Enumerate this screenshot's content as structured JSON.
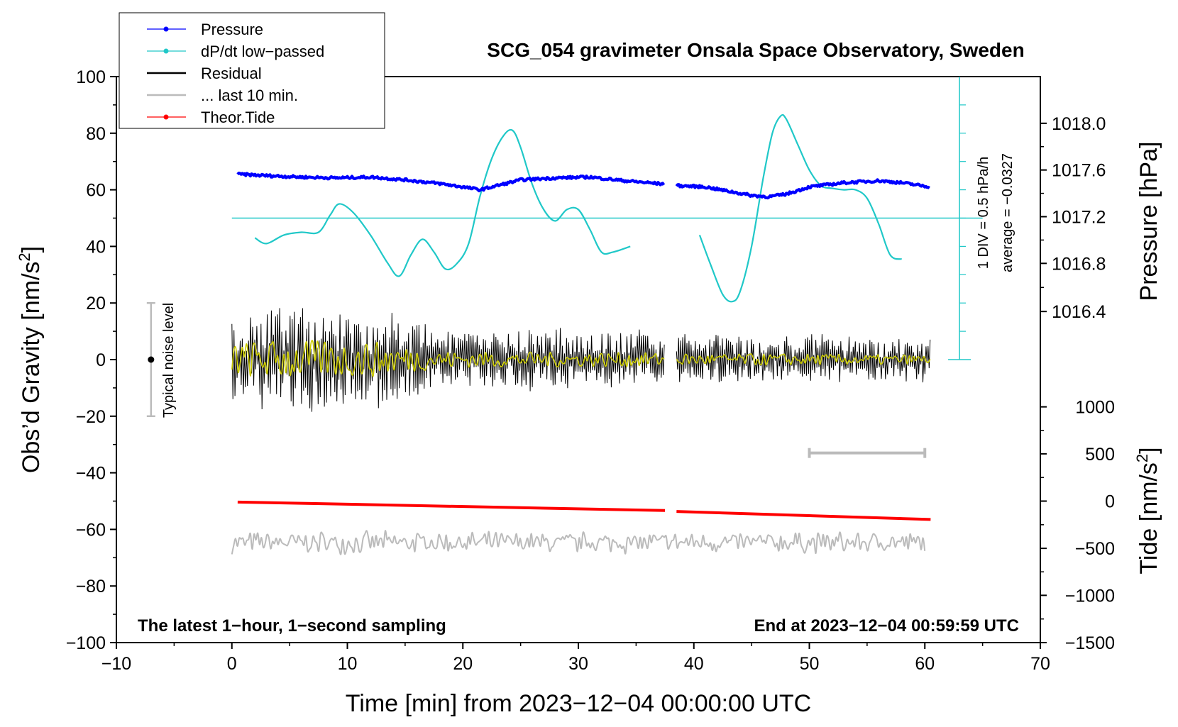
{
  "chart_data": {
    "type": "line",
    "title": "SCG_054 gravimeter Onsala Space Observatory, Sweden",
    "xlabel": "Time [min] from 2023−12−04 00:00:00 UTC",
    "ylabel_left": "Obs’d Gravity [nm/s²]",
    "ylabel_left_parts": {
      "base": "Obs’d Gravity [nm/s",
      "sup": "2",
      "end": "]"
    },
    "ylabel_pressure": "Pressure [hPa]",
    "ylabel_tide": "Tide [nm/s²]",
    "ylabel_tide_parts": {
      "base": "Tide [nm/s",
      "sup": "2",
      "end": "]"
    },
    "xlim": [
      -10,
      70
    ],
    "ylim_left": [
      -100,
      100
    ],
    "x_ticks": [
      -10,
      0,
      10,
      20,
      30,
      40,
      50,
      60,
      70
    ],
    "x_tick_labels": [
      "−10",
      "0",
      "10",
      "20",
      "30",
      "40",
      "50",
      "60",
      "70"
    ],
    "y_ticks": [
      -100,
      -80,
      -60,
      -40,
      -20,
      0,
      20,
      40,
      60,
      80,
      100
    ],
    "y_tick_labels": [
      "−100",
      "−80",
      "−60",
      "−40",
      "−20",
      "0",
      "20",
      "40",
      "60",
      "80",
      "100"
    ],
    "pressure_axis": {
      "ticks": [
        1016.4,
        1016.8,
        1017.2,
        1017.6,
        1018.0
      ],
      "tick_labels": [
        "1016.4",
        "1016.8",
        "1017.2",
        "1017.6",
        "1018.0"
      ],
      "gravity_at_ticks": [
        17,
        34,
        50.5,
        67,
        83.5
      ]
    },
    "tide_axis": {
      "ticks": [
        -1500,
        -1000,
        -500,
        0,
        500,
        1000
      ],
      "tick_labels": [
        "−1500",
        "−1000",
        "−500",
        "0",
        "500",
        "1000"
      ],
      "gravity_at_ticks": [
        -100,
        -83.3,
        -66.7,
        -50,
        -33.3,
        -16.7
      ]
    },
    "legend": {
      "position": "top-left",
      "entries": [
        {
          "label": "Pressure",
          "color": "#0000ff",
          "marker": true
        },
        {
          "label": "dP/dt low−passed",
          "color": "#20c8c8",
          "marker": true
        },
        {
          "label": "Residual",
          "color": "#000000",
          "marker": false
        },
        {
          "label": "... last 10 min.",
          "color": "#bbbbbb",
          "marker": false
        },
        {
          "label": "Theor.Tide",
          "color": "#ff0000",
          "marker": true
        }
      ]
    },
    "annotations": {
      "bottom_left": "The latest 1−hour, 1−second sampling",
      "bottom_right": "End at 2023−12−04 00:59:59 UTC",
      "noise_label": "Typical noise level",
      "dpdt_scale": "1 DIV = 0.5 hPa/h",
      "dpdt_average": "average = −0.0327"
    },
    "noise_bar": {
      "x": -7,
      "center": 0,
      "range": [
        -20,
        20
      ]
    },
    "last10_bar": {
      "x_range": [
        50,
        60
      ],
      "y": -33
    },
    "dpdt_baseline": 50,
    "dpdt_scale_bar": {
      "x": 63,
      "y_range": [
        0,
        100
      ],
      "divisions": 10
    },
    "series": [
      {
        "name": "Pressure",
        "color": "#0000ff",
        "segments": [
          {
            "x": [
              0.5,
              3,
              6,
              9,
              12,
              15,
              18,
              20,
              21.5,
              23,
              25,
              28,
              31,
              34,
              37.5
            ],
            "y": [
              65.5,
              65,
              64.5,
              64.2,
              64.5,
              63.5,
              62.2,
              61,
              60,
              61.5,
              63.5,
              64.2,
              64.5,
              63.2,
              62
            ]
          },
          {
            "x": [
              38.5,
              41,
              43,
              45,
              46.5,
              48,
              50,
              53,
              56,
              58,
              60.5
            ],
            "y": [
              61.5,
              61,
              59.5,
              58,
              57.5,
              58.5,
              61,
              62.5,
              63.2,
              62.5,
              61
            ]
          }
        ]
      },
      {
        "name": "dP/dt low−passed",
        "color": "#20c8c8",
        "segments": [
          {
            "x": [
              2,
              3,
              4.5,
              6,
              7.5,
              8.5,
              9.3,
              10.5,
              12,
              13.5,
              14.5,
              15.5,
              16.5,
              17.5,
              18.5,
              19.5,
              20.5,
              21.5,
              22.5,
              23.5,
              24.3,
              25,
              26,
              27,
              28,
              29,
              30,
              31,
              32,
              33,
              34.5
            ],
            "y": [
              43,
              41,
              44,
              45,
              45,
              51,
              55,
              52,
              44,
              34,
              29.5,
              37,
              42.5,
              38,
              32,
              34,
              41,
              58,
              71,
              79,
              81,
              75,
              62,
              53,
              49,
              53,
              53,
              46,
              38,
              38,
              40
            ]
          },
          {
            "x": [
              40.5,
              41.5,
              42.5,
              43.3,
              44,
              45,
              46,
              46.8,
              47.5,
              48,
              49,
              50,
              51,
              52,
              53,
              54,
              55,
              56,
              57,
              58
            ],
            "y": [
              44,
              33,
              23,
              20.5,
              24,
              40,
              64,
              80,
              86,
              85,
              76,
              67,
              61.5,
              60.5,
              60,
              60,
              57,
              48,
              37,
              35.5
            ]
          }
        ]
      }
    ],
    "residual": {
      "color": "#000000",
      "segments_x": [
        [
          0,
          37.5
        ],
        [
          38.5,
          60.5
        ]
      ],
      "amplitude_profile": {
        "x": [
          0,
          5,
          10,
          13,
          16,
          20,
          25,
          30,
          35,
          37.5,
          40,
          45,
          50,
          55,
          60.5
        ],
        "amp": [
          15,
          19,
          16,
          17,
          13,
          9,
          11,
          10,
          10,
          8,
          9,
          7,
          8,
          7,
          7
        ]
      }
    },
    "residual_lowpass": {
      "color": "#cccc00",
      "amplitude_profile": {
        "x": [
          0,
          5,
          10,
          13,
          18,
          25,
          35,
          40,
          50,
          60.5
        ],
        "amp": [
          6,
          7,
          6,
          6,
          3,
          2.5,
          2.5,
          2,
          2,
          1.5
        ]
      }
    },
    "theor_tide": {
      "color": "#ff0000",
      "segments": [
        {
          "x": [
            0.5,
            37.5
          ],
          "tide": [
            -10,
            -100
          ]
        },
        {
          "x": [
            38.5,
            60.5
          ],
          "tide": [
            -110,
            -195
          ]
        }
      ]
    },
    "last_10_min": {
      "color": "#bbbbbb",
      "x_range": [
        0,
        60
      ],
      "center_tide": -440,
      "amplitude_tide": 130
    }
  }
}
